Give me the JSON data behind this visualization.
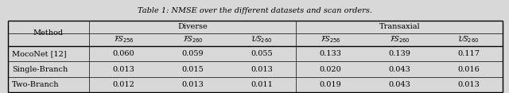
{
  "title": "Table 1: NMSE over the different datasets and scan orders.",
  "col_groups": [
    "Diverse",
    "Transaxial"
  ],
  "col_header_labels": [
    "$\\mathcal{F}\\!\\mathcal{S}_{256}$",
    "$\\mathcal{F}\\!\\mathcal{S}_{260}$",
    "$\\mathcal{U}\\!\\mathcal{S}_{260}$",
    "$\\mathcal{F}\\!\\mathcal{S}_{256}$",
    "$\\mathcal{F}\\!\\mathcal{S}_{260}$",
    "$\\mathcal{U}\\!\\mathcal{S}_{260}$"
  ],
  "row_headers": [
    "MocoNet [12]",
    "Single-Branch",
    "Two-Branch"
  ],
  "data": [
    [
      "0.060",
      "0.059",
      "0.055",
      "0.133",
      "0.139",
      "0.117"
    ],
    [
      "0.013",
      "0.015",
      "0.013",
      "0.020",
      "0.043",
      "0.016"
    ],
    [
      "0.012",
      "0.013",
      "0.011",
      "0.019",
      "0.043",
      "0.013"
    ]
  ],
  "bg_color": "#d8d8d8",
  "title_fontsize": 7.0,
  "cell_fontsize": 7.0,
  "header_fontsize": 7.0
}
